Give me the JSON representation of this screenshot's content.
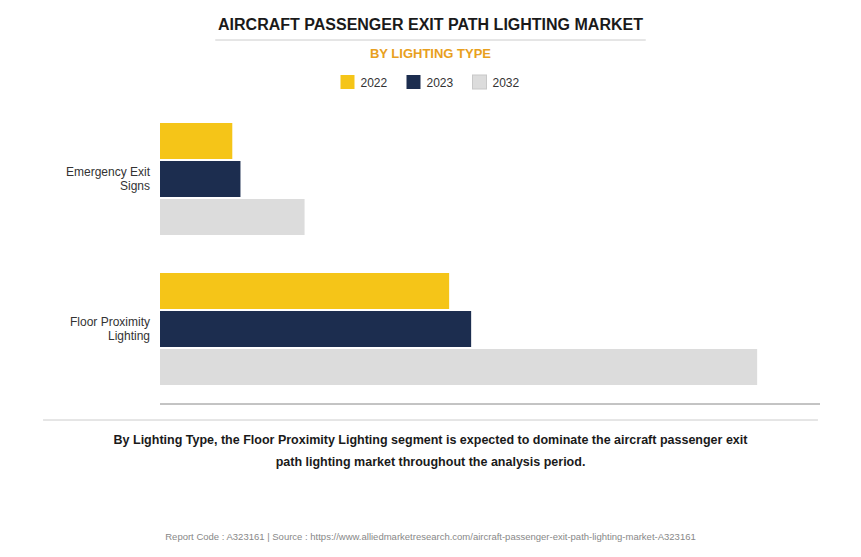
{
  "chart_data": {
    "type": "bar",
    "orientation": "horizontal",
    "title": "AIRCRAFT PASSENGER EXIT PATH LIGHTING MARKET",
    "subtitle": "BY LIGHTING TYPE",
    "categories": [
      "Emergency Exit\nSigns",
      "Floor Proximity\nLighting"
    ],
    "series": [
      {
        "name": "2022",
        "color": "#F5C518",
        "values": [
          1.15,
          4.6
        ]
      },
      {
        "name": "2023",
        "color": "#1C2D4F",
        "values": [
          1.28,
          4.95
        ]
      },
      {
        "name": "2032",
        "color": "#DCDCDC",
        "values": [
          2.3,
          9.5
        ]
      }
    ],
    "xlim": [
      0,
      10.5
    ],
    "grid": false,
    "tick_labels": false,
    "legend": "top",
    "annotations": [
      "By Lighting Type, the Floor Proximity Lighting segment is expected to dominate the aircraft passenger exit",
      "path lighting market throughout the analysis period."
    ],
    "footer": "Report Code : A323161  |  Source : https://www.alliedmarketresearch.com/aircraft-passenger-exit-path-lighting-market-A323161"
  }
}
